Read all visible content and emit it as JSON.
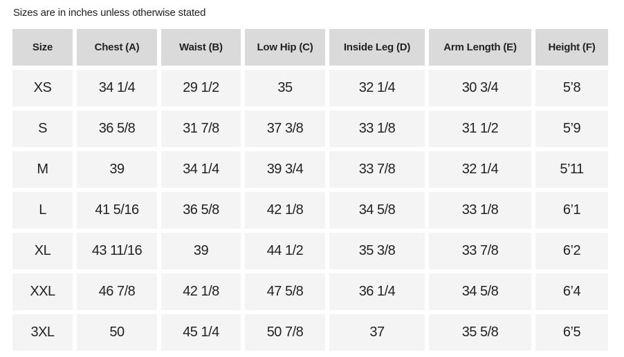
{
  "note": "Sizes are in inches unless otherwise stated",
  "headers": [
    "Size",
    "Chest (A)",
    "Waist (B)",
    "Low Hip (C)",
    "Inside Leg (D)",
    "Arm Length (E)",
    "Height (F)"
  ],
  "rows": [
    [
      "XS",
      "34 1/4",
      "29 1/2",
      "35",
      "32 1/4",
      "30 3/4",
      "5’8"
    ],
    [
      "S",
      "36 5/8",
      "31 7/8",
      "37 3/8",
      "33 1/8",
      "31 1/2",
      "5’9"
    ],
    [
      "M",
      "39",
      "34 1/4",
      "39 3/4",
      "33 7/8",
      "32 1/4",
      "5’11"
    ],
    [
      "L",
      "41 5/16",
      "36 5/8",
      "42 1/8",
      "34 5/8",
      "33 1/8",
      "6’1"
    ],
    [
      "XL",
      "43 11/16",
      "39",
      "44 1/2",
      "35 3/8",
      "33 7/8",
      "6’2"
    ],
    [
      "XXL",
      "46 7/8",
      "42 1/8",
      "47 5/8",
      "36 1/4",
      "34 5/8",
      "6’4"
    ],
    [
      "3XL",
      "50",
      "45 1/4",
      "50 7/8",
      "37",
      "35 5/8",
      "6’5"
    ]
  ]
}
